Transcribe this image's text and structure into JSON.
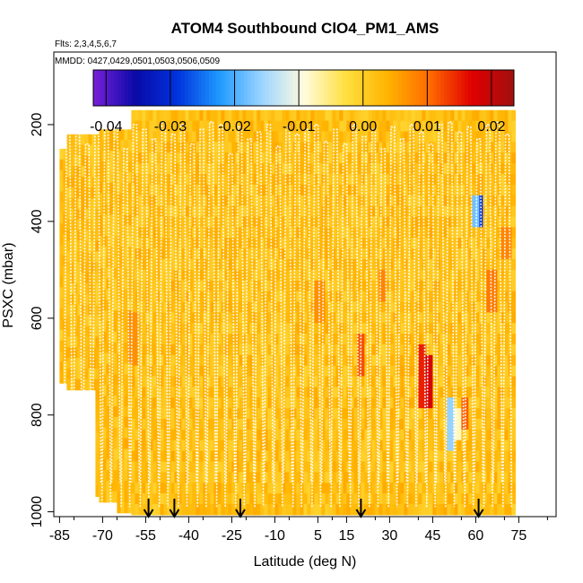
{
  "chart_data": {
    "type": "heatmap",
    "title": "ATOM4 Southbound ClO4_PM1_AMS",
    "subtitle_flights": "Flts: 2,3,4,5,6,7",
    "subtitle_dates": "MMDD: 0427,0429,0501,0503,0506,0509",
    "xlabel": "Latitude (deg N)",
    "ylabel": "PSXC (mbar)",
    "xlim": [
      -87,
      88
    ],
    "ylim": [
      1010,
      50
    ],
    "x_ticks": [
      -85,
      -70,
      -55,
      -40,
      -25,
      -10,
      5,
      15,
      30,
      45,
      60,
      75
    ],
    "x_tick_labels": [
      "-85",
      "-70",
      "-55",
      "-40",
      "-25",
      "-10",
      "5",
      "15",
      "30",
      "45",
      "60",
      "75"
    ],
    "y_ticks": [
      200,
      400,
      600,
      800,
      1000
    ],
    "y_tick_labels": [
      "200",
      "400",
      "600",
      "800",
      "1000"
    ],
    "colorbar": {
      "min": -0.042,
      "max": 0.0235,
      "ticks": [
        -0.04,
        -0.03,
        -0.02,
        -0.01,
        0.0,
        0.01,
        0.02
      ],
      "tick_labels": [
        "-0.04",
        "-0.03",
        "-0.02",
        "-0.01",
        "0.00",
        "0.01",
        "0.02"
      ],
      "colors": [
        "#7a1fd9",
        "#0a0aa8",
        "#0033dd",
        "#1f9aff",
        "#9bd4ff",
        "#fffce0",
        "#ffe040",
        "#ffb300",
        "#ff6a00",
        "#e00000",
        "#a01010"
      ]
    },
    "background_value": 0.002,
    "anomalies": [
      {
        "lat": 41,
        "p_top": 665,
        "p_bottom": 775,
        "value": 0.015
      },
      {
        "lat": 43,
        "p_top": 690,
        "p_bottom": 770,
        "value": 0.018
      },
      {
        "lat": 61,
        "p_top": 360,
        "p_bottom": 410,
        "value": -0.03
      },
      {
        "lat": 59,
        "p_top": 365,
        "p_bottom": 410,
        "value": -0.018
      },
      {
        "lat": 51,
        "p_top": 765,
        "p_bottom": 855,
        "value": -0.016
      },
      {
        "lat": 53,
        "p_top": 790,
        "p_bottom": 845,
        "value": -0.008
      },
      {
        "lat": 19,
        "p_top": 650,
        "p_bottom": 720,
        "value": 0.012
      },
      {
        "lat": 56,
        "p_top": 780,
        "p_bottom": 820,
        "value": 0.011
      },
      {
        "lat": 65,
        "p_top": 510,
        "p_bottom": 580,
        "value": 0.009
      },
      {
        "lat": 70,
        "p_top": 420,
        "p_bottom": 460,
        "value": 0.008
      },
      {
        "lat": -60,
        "p_top": 600,
        "p_bottom": 680,
        "value": 0.007
      },
      {
        "lat": 27,
        "p_top": 520,
        "p_bottom": 560,
        "value": 0.008
      },
      {
        "lat": 5,
        "p_top": 540,
        "p_bottom": 600,
        "value": 0.007
      }
    ],
    "profile_arrows_lat": [
      -54,
      -45,
      -22,
      20,
      61
    ],
    "profile_tops_mbar": [
      205,
      200,
      240,
      215,
      200,
      190,
      250,
      200,
      210,
      230,
      195,
      220,
      200,
      240,
      210,
      195,
      200,
      260,
      205,
      230,
      215,
      200,
      245,
      205,
      220,
      210,
      200,
      235,
      210,
      240,
      200,
      225,
      210,
      250,
      205,
      230,
      200,
      215,
      240,
      200,
      195,
      215,
      205,
      230,
      200,
      195,
      220
    ]
  }
}
